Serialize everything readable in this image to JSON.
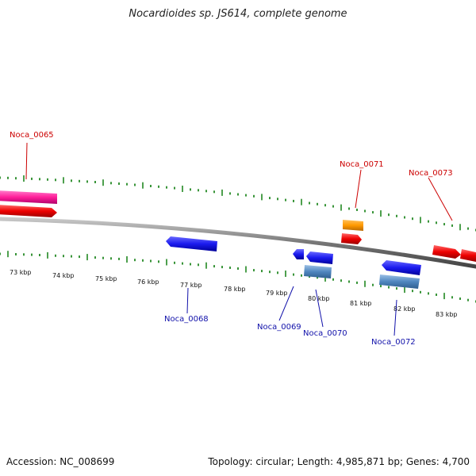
{
  "title": "Nocardioides sp. JS614, complete genome",
  "footer": {
    "accession": "Accession: NC_008699",
    "summary": "Topology: circular; Length: 4,985,871 bp; Genes: 4,700"
  },
  "colors": {
    "forward_label": "#cc0000",
    "reverse_label": "#1111aa",
    "tick": "#228822",
    "backbone": "#777777"
  },
  "scale_labels": [
    "73 kbp",
    "74 kbp",
    "75 kbp",
    "76 kbp",
    "77 kbp",
    "78 kbp",
    "79 kbp",
    "80 kbp",
    "81 kbp",
    "82 kbp",
    "83 kbp"
  ],
  "gene_labels": [
    {
      "id": "Noca_0065",
      "strand": "forward"
    },
    {
      "id": "Noca_0071",
      "strand": "forward"
    },
    {
      "id": "Noca_0073",
      "strand": "forward"
    },
    {
      "id": "Noca_0068",
      "strand": "reverse"
    },
    {
      "id": "Noca_0069",
      "strand": "reverse"
    },
    {
      "id": "Noca_0070",
      "strand": "reverse"
    },
    {
      "id": "Noca_0072",
      "strand": "reverse"
    }
  ]
}
